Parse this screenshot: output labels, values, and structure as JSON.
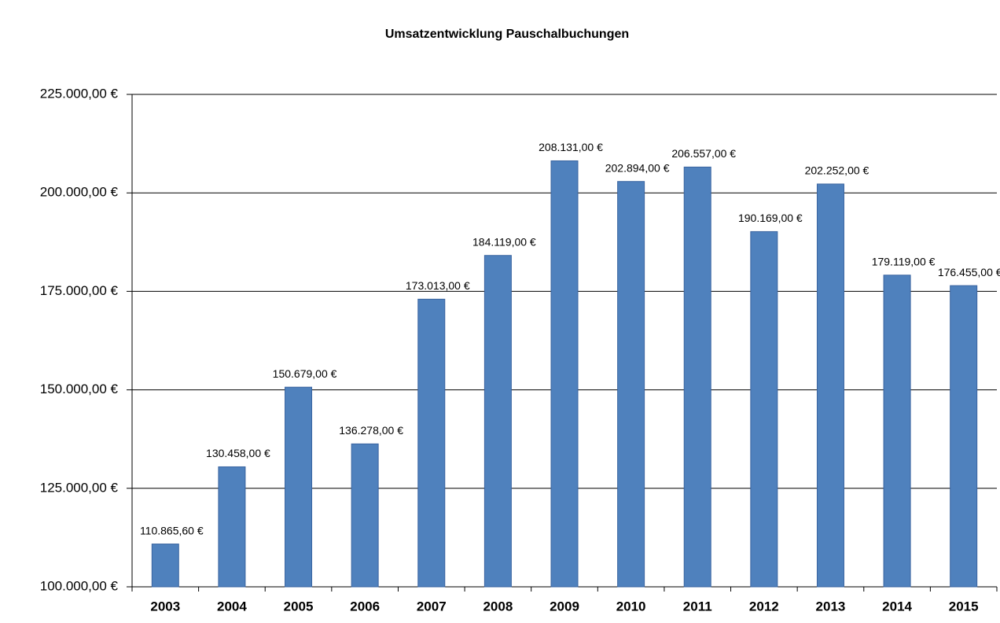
{
  "chart_data": {
    "type": "bar",
    "title": "Umsatzentwicklung Pauschalbuchungen",
    "categories": [
      "2003",
      "2004",
      "2005",
      "2006",
      "2007",
      "2008",
      "2009",
      "2010",
      "2011",
      "2012",
      "2013",
      "2014",
      "2015"
    ],
    "values": [
      110865.6,
      130458,
      150679,
      136278,
      173013,
      184119,
      208131,
      202894,
      206557,
      190169,
      202252,
      179119,
      176455
    ],
    "value_labels": [
      "110.865,60 €",
      "130.458,00 €",
      "150.679,00 €",
      "136.278,00 €",
      "173.013,00 €",
      "184.119,00 €",
      "208.131,00 €",
      "202.894,00 €",
      "206.557,00 €",
      "190.169,00 €",
      "202.252,00 €",
      "179.119,00 €",
      "176.455,00 €"
    ],
    "color": "#4f81bd",
    "ylim": [
      100000,
      225000
    ],
    "yticks": [
      {
        "value": 100000,
        "label": "100.000,00 €"
      },
      {
        "value": 125000,
        "label": "125.000,00 €"
      },
      {
        "value": 150000,
        "label": "150.000,00 €"
      },
      {
        "value": 175000,
        "label": "175.000,00 €"
      },
      {
        "value": 200000,
        "label": "200.000,00 €"
      },
      {
        "value": 225000,
        "label": "225.000,00 €"
      }
    ],
    "grid": true
  }
}
